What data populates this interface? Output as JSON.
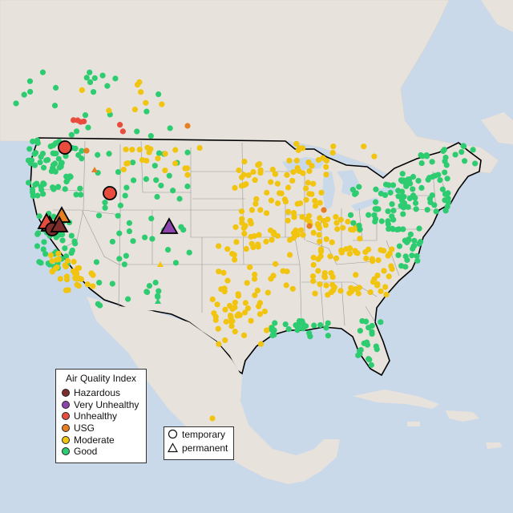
{
  "legend_aqi": {
    "title": "Air Quality Index",
    "items": [
      {
        "label": "Hazardous",
        "color": "#7e2d2d"
      },
      {
        "label": "Very Unhealthy",
        "color": "#8e44ad"
      },
      {
        "label": "Unhealthy",
        "color": "#e74c3c"
      },
      {
        "label": "USG",
        "color": "#e67e22"
      },
      {
        "label": "Moderate",
        "color": "#f1c40f"
      },
      {
        "label": "Good",
        "color": "#2ecc71"
      }
    ]
  },
  "legend_type": {
    "items": [
      {
        "label": "temporary",
        "shape": "circle"
      },
      {
        "label": "permanent",
        "shape": "triangle"
      }
    ]
  },
  "map_colors": {
    "ocean": "#c9d9ea",
    "land": "#e8e2dc",
    "good": "#2ecc71",
    "moderate": "#f1c40f",
    "usg": "#e67e22",
    "unhealthy": "#e74c3c",
    "very_unhealthy": "#8e44ad",
    "hazardous": "#7e2d2d"
  }
}
